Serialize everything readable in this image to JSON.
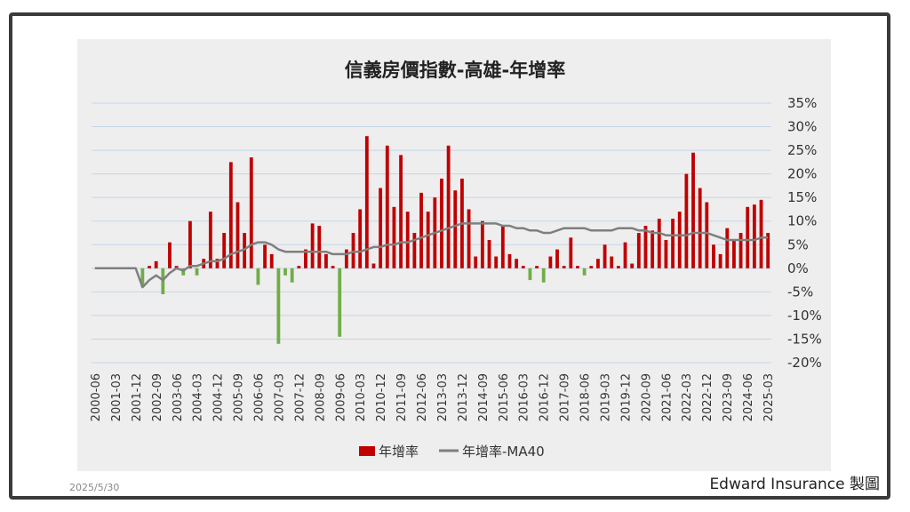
{
  "footer": {
    "date": "2025/5/30",
    "credit": "Edward Insurance 製圖"
  },
  "chart_data": {
    "type": "bar",
    "title": "信義房價指數-高雄-年增率",
    "y_ticks": [
      "35%",
      "30%",
      "25%",
      "20%",
      "15%",
      "10%",
      "5%",
      "0%",
      "-5%",
      "-10%",
      "-15%",
      "-20%"
    ],
    "ylim": [
      -20,
      35
    ],
    "x_tick_labels": [
      "2000-06",
      "2001-03",
      "2001-12",
      "2002-09",
      "2003-06",
      "2004-03",
      "2004-12",
      "2005-09",
      "2006-06",
      "2007-03",
      "2007-12",
      "2008-09",
      "2009-06",
      "2010-03",
      "2010-12",
      "2011-09",
      "2012-06",
      "2013-03",
      "2013-12",
      "2014-09",
      "2015-06",
      "2016-03",
      "2016-12",
      "2017-09",
      "2018-06",
      "2019-03",
      "2019-12",
      "2020-09",
      "2021-06",
      "2022-03",
      "2022-12",
      "2023-09",
      "2024-06",
      "2025-03"
    ],
    "legend": [
      "年增率",
      "年增率-MA40"
    ],
    "legend_position": "bottom",
    "colors": {
      "positive": "#c00000",
      "negative": "#70ad47",
      "ma": "#7f7f7f",
      "grid": "#c5d5ea"
    },
    "series": [
      {
        "name": "年增率",
        "values": [
          0,
          0,
          0,
          0,
          0,
          0,
          0,
          -4,
          0.5,
          1.5,
          -5.5,
          5.5,
          0.5,
          -1.5,
          10,
          -1.5,
          2,
          12,
          2,
          7.5,
          22.5,
          14,
          7.5,
          23.5,
          -3.5,
          5,
          3,
          -16,
          -1.5,
          -3,
          0.5,
          4,
          9.5,
          9,
          3,
          0.5,
          -14.5,
          4,
          7.5,
          12.5,
          28,
          1,
          17,
          26,
          13,
          24,
          12,
          7.5,
          16,
          12,
          15,
          19,
          26,
          16.5,
          19,
          12.5,
          2.5,
          10,
          6,
          2.5,
          9,
          3,
          2,
          0.5,
          -2.5,
          0.5,
          -3,
          2.5,
          4,
          0.5,
          6.5,
          0.5,
          -1.5,
          0.5,
          2,
          5,
          2.5,
          0.5,
          5.5,
          1,
          7.5,
          9,
          8,
          10.5,
          6,
          10.5,
          12,
          20,
          24.5,
          17,
          14,
          5,
          3,
          8.5,
          6,
          7.5,
          13,
          13.5,
          14.5,
          7.5
        ]
      },
      {
        "name": "年增率-MA40",
        "values": [
          0,
          0,
          0,
          0,
          0,
          0,
          0,
          -4,
          -2.5,
          -1.5,
          -2.5,
          -1,
          0,
          -0.5,
          0.5,
          0.5,
          1,
          1.5,
          1.5,
          2,
          3,
          3.5,
          4,
          5,
          5.5,
          5.5,
          5,
          4,
          3.5,
          3.5,
          3.5,
          3.5,
          3.5,
          3.5,
          3.5,
          3,
          3,
          3,
          3.5,
          3.5,
          4,
          4.5,
          4.5,
          5,
          5,
          5.5,
          5.5,
          6,
          6.5,
          7,
          7.5,
          8,
          8.5,
          9,
          9.5,
          9.5,
          9.5,
          9.5,
          9.5,
          9.5,
          9,
          9,
          8.5,
          8.5,
          8,
          8,
          7.5,
          7.5,
          8,
          8.5,
          8.5,
          8.5,
          8.5,
          8,
          8,
          8,
          8,
          8.5,
          8.5,
          8.5,
          8,
          8,
          7.5,
          7.5,
          7,
          7,
          7,
          7,
          7.5,
          7.5,
          7.5,
          7,
          6.5,
          6,
          6,
          6,
          6,
          6,
          6.5,
          6.5
        ]
      }
    ]
  }
}
